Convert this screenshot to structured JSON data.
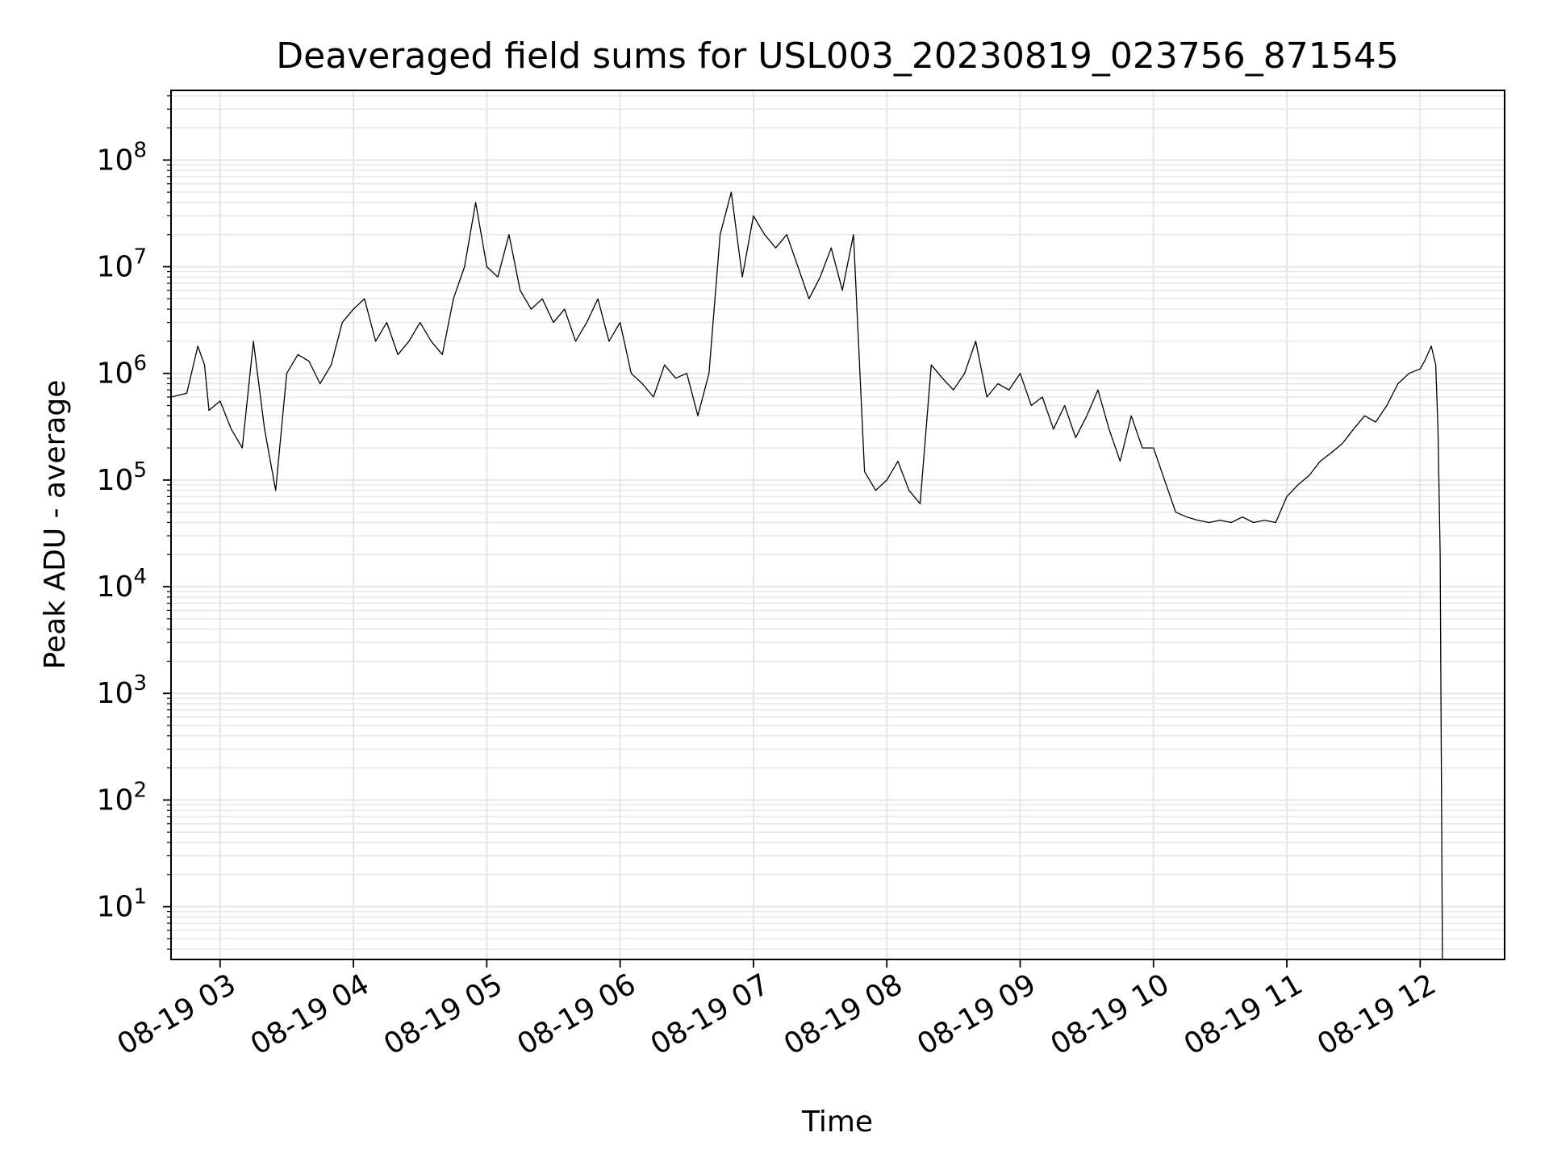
{
  "chart_data": {
    "type": "line",
    "title": "Deaveraged field sums for USL003_20230819_023756_871545",
    "xlabel": "Time",
    "ylabel": "Peak ADU - average",
    "yscale": "log",
    "ylim": [
      3.2,
      450000000
    ],
    "xlim": [
      "2023-08-19 02:37:56",
      "2023-08-19 12:38:00"
    ],
    "x_ticks": [
      "08-19 03",
      "08-19 04",
      "08-19 05",
      "08-19 06",
      "08-19 07",
      "08-19 08",
      "08-19 09",
      "08-19 10",
      "08-19 11",
      "08-19 12"
    ],
    "y_ticks": [
      {
        "value": 10,
        "base": "10",
        "exp": "1"
      },
      {
        "value": 100,
        "base": "10",
        "exp": "2"
      },
      {
        "value": 1000,
        "base": "10",
        "exp": "3"
      },
      {
        "value": 10000,
        "base": "10",
        "exp": "4"
      },
      {
        "value": 100000,
        "base": "10",
        "exp": "5"
      },
      {
        "value": 1000000,
        "base": "10",
        "exp": "6"
      },
      {
        "value": 10000000,
        "base": "10",
        "exp": "7"
      },
      {
        "value": 100000000,
        "base": "10",
        "exp": "8"
      }
    ],
    "grid": true,
    "line_color": "#000000",
    "grid_color": "#e6e6e6",
    "series": [
      {
        "x": [
          "02:38",
          "02:45",
          "02:50",
          "02:53",
          "02:55",
          "03:00",
          "03:05",
          "03:10",
          "03:15",
          "03:20",
          "03:25",
          "03:30",
          "03:35",
          "03:40",
          "03:45",
          "03:50",
          "03:55",
          "04:00",
          "04:05",
          "04:10",
          "04:15",
          "04:20",
          "04:25",
          "04:30",
          "04:35",
          "04:40",
          "04:45",
          "04:50",
          "04:55",
          "05:00",
          "05:05",
          "05:10",
          "05:15",
          "05:20",
          "05:25",
          "05:30",
          "05:35",
          "05:40",
          "05:45",
          "05:50",
          "05:55",
          "06:00",
          "06:05",
          "06:10",
          "06:15",
          "06:20",
          "06:25",
          "06:30",
          "06:35",
          "06:40",
          "06:45",
          "06:50",
          "06:55",
          "07:00",
          "07:05",
          "07:10",
          "07:15",
          "07:20",
          "07:25",
          "07:30",
          "07:35",
          "07:40",
          "07:45",
          "07:50",
          "07:55",
          "08:00",
          "08:05",
          "08:10",
          "08:15",
          "08:20",
          "08:25",
          "08:30",
          "08:35",
          "08:40",
          "08:45",
          "08:50",
          "08:55",
          "09:00",
          "09:05",
          "09:10",
          "09:15",
          "09:20",
          "09:25",
          "09:30",
          "09:35",
          "09:40",
          "09:45",
          "09:50",
          "09:55",
          "10:00",
          "10:05",
          "10:10",
          "10:15",
          "10:20",
          "10:25",
          "10:30",
          "10:35",
          "10:40",
          "10:45",
          "10:50",
          "10:55",
          "11:00",
          "11:05",
          "11:10",
          "11:15",
          "11:20",
          "11:25",
          "11:30",
          "11:35",
          "11:40",
          "11:45",
          "11:50",
          "11:55",
          "12:00",
          "12:02",
          "12:05",
          "12:07",
          "12:08",
          "12:09",
          "12:10"
        ],
        "y": [
          600000,
          650000,
          1800000,
          1200000,
          450000,
          550000,
          300000,
          200000,
          2000000,
          300000,
          80000,
          1000000,
          1500000,
          1300000,
          800000,
          1200000,
          3000000,
          4000000,
          5000000,
          2000000,
          3000000,
          1500000,
          2000000,
          3000000,
          2000000,
          1500000,
          5000000,
          10000000,
          40000000,
          10000000,
          8000000,
          20000000,
          6000000,
          4000000,
          5000000,
          3000000,
          4000000,
          2000000,
          3000000,
          5000000,
          2000000,
          3000000,
          1000000,
          800000,
          600000,
          1200000,
          900000,
          1000000,
          400000,
          1000000,
          20000000,
          50000000,
          8000000,
          30000000,
          20000000,
          15000000,
          20000000,
          10000000,
          5000000,
          8000000,
          15000000,
          6000000,
          20000000,
          120000,
          80000,
          100000,
          150000,
          80000,
          60000,
          1200000,
          900000,
          700000,
          1000000,
          2000000,
          600000,
          800000,
          700000,
          1000000,
          500000,
          600000,
          300000,
          500000,
          250000,
          400000,
          700000,
          300000,
          150000,
          400000,
          200000,
          200000,
          100000,
          50000,
          45000,
          42000,
          40000,
          42000,
          40000,
          45000,
          40000,
          42000,
          40000,
          70000,
          90000,
          110000,
          150000,
          180000,
          220000,
          300000,
          400000,
          350000,
          500000,
          800000,
          1000000,
          1100000,
          1300000,
          1800000,
          1200000,
          300000,
          20000,
          3
        ]
      }
    ]
  }
}
